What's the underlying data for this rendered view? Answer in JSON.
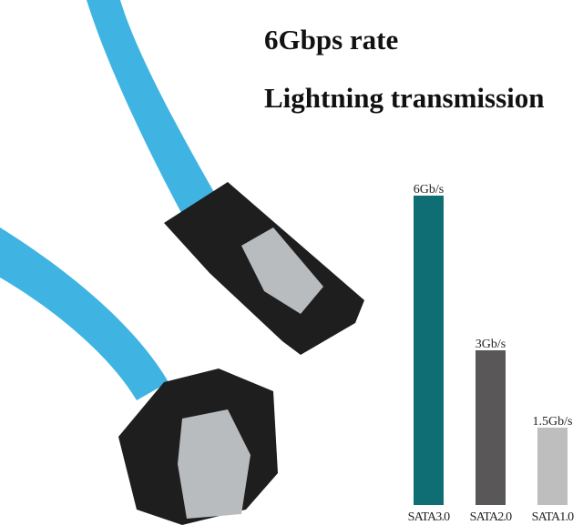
{
  "headlines": {
    "line1": "6Gbps rate",
    "line2": "Lightning transmission"
  },
  "product": {
    "cable_color": "#3fb4e3",
    "connector_color": "#1e1e1e",
    "latch_color": "#b9bcbf"
  },
  "chart_data": {
    "type": "bar",
    "categories": [
      "SATA3.0",
      "SATA2.0",
      "SATA1.0"
    ],
    "values": [
      6,
      3,
      1.5
    ],
    "data_labels": [
      "6Gb/s",
      "3Gb/s",
      "1.5Gb/s"
    ],
    "colors": [
      "#0f6d74",
      "#595758",
      "#bebebe"
    ],
    "title": "",
    "xlabel": "",
    "ylabel": "",
    "ylim": [
      0,
      6
    ],
    "grid": false,
    "legend": "none"
  }
}
